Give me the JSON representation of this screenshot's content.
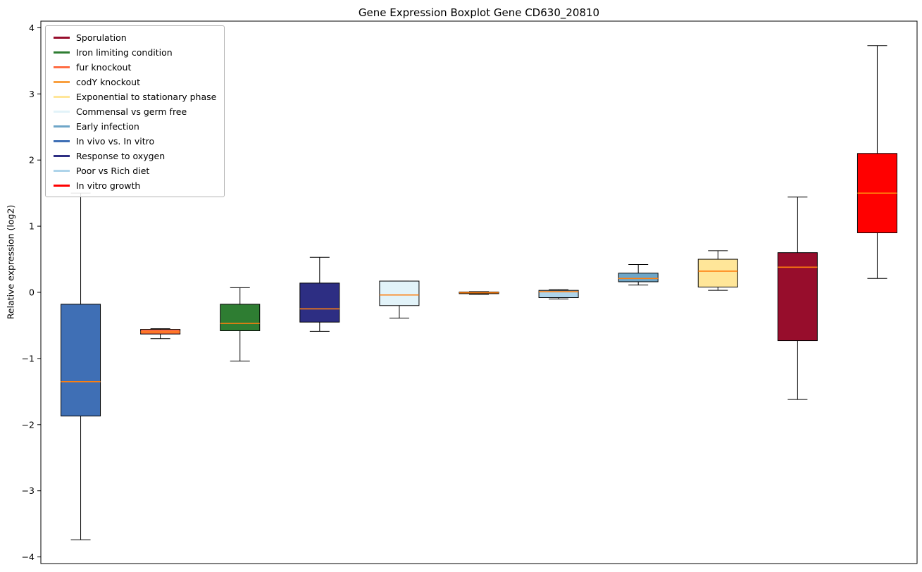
{
  "chart_data": {
    "type": "boxplot",
    "title": "Gene Expression Boxplot Gene CD630_20810",
    "ylabel": "Relative expression (log2)",
    "xlabel": "",
    "ylim": [
      -4.1,
      4.1
    ],
    "yticks": [
      -4,
      -3,
      -2,
      -1,
      0,
      1,
      2,
      3,
      4
    ],
    "grid": false,
    "legend_position": "upper left",
    "median_color": "#FF7F0E",
    "legend": [
      {
        "label": "Sporulation",
        "color": "#970D2C"
      },
      {
        "label": "Iron limiting condition",
        "color": "#2E7D32"
      },
      {
        "label": "fur knockout",
        "color": "#FF6D44"
      },
      {
        "label": "codY knockout",
        "color": "#F9A03F"
      },
      {
        "label": "Exponential to stationary phase",
        "color": "#FFE699"
      },
      {
        "label": "Commensal vs germ free",
        "color": "#E2F3F9"
      },
      {
        "label": "Early infection",
        "color": "#6EA6C8"
      },
      {
        "label": "In vivo vs. In vitro",
        "color": "#3F6FB5"
      },
      {
        "label": "Response to oxygen",
        "color": "#2D2E83"
      },
      {
        "label": "Poor vs Rich diet",
        "color": "#AED4EA"
      },
      {
        "label": "In vitro growth",
        "color": "#FF0000"
      }
    ],
    "series": [
      {
        "name": "In vivo vs. In vitro",
        "color": "#3F6FB5",
        "whislo": -3.74,
        "q1": -1.87,
        "med": -1.35,
        "q3": -0.18,
        "whishi": 1.5
      },
      {
        "name": "fur knockout",
        "color": "#FF6D44",
        "whislo": -0.7,
        "q1": -0.63,
        "med": -0.6,
        "q3": -0.56,
        "whishi": -0.55
      },
      {
        "name": "Iron limiting condition",
        "color": "#2E7D32",
        "whislo": -1.04,
        "q1": -0.58,
        "med": -0.47,
        "q3": -0.18,
        "whishi": 0.07
      },
      {
        "name": "Response to oxygen",
        "color": "#2D2E83",
        "whislo": -0.59,
        "q1": -0.45,
        "med": -0.25,
        "q3": 0.14,
        "whishi": 0.53
      },
      {
        "name": "Commensal vs germ free",
        "color": "#E2F3F9",
        "whislo": -0.39,
        "q1": -0.2,
        "med": -0.04,
        "q3": 0.17,
        "whishi": 0.17
      },
      {
        "name": "codY knockout",
        "color": "#F9A03F",
        "whislo": -0.03,
        "q1": -0.02,
        "med": -0.005,
        "q3": 0.005,
        "whishi": 0.01
      },
      {
        "name": "Poor vs Rich diet",
        "color": "#AED4EA",
        "whislo": -0.1,
        "q1": -0.08,
        "med": 0.01,
        "q3": 0.03,
        "whishi": 0.04
      },
      {
        "name": "Early infection",
        "color": "#6EA6C8",
        "whislo": 0.11,
        "q1": 0.16,
        "med": 0.21,
        "q3": 0.29,
        "whishi": 0.42
      },
      {
        "name": "Exponential to stationary phase",
        "color": "#FFE699",
        "whislo": 0.03,
        "q1": 0.08,
        "med": 0.32,
        "q3": 0.5,
        "whishi": 0.63
      },
      {
        "name": "Sporulation",
        "color": "#970D2C",
        "whislo": -1.62,
        "q1": -0.73,
        "med": 0.38,
        "q3": 0.6,
        "whishi": 1.44
      },
      {
        "name": "In vitro growth",
        "color": "#FF0000",
        "whislo": 0.21,
        "q1": 0.9,
        "med": 1.5,
        "q3": 2.1,
        "whishi": 3.73
      }
    ]
  }
}
